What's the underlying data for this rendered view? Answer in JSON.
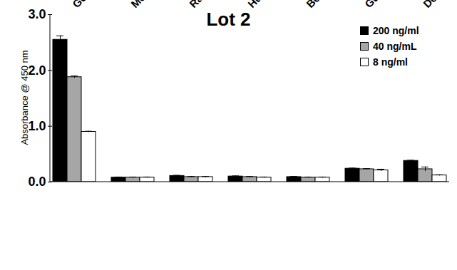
{
  "chart_data": {
    "type": "bar",
    "title": "Lot 2",
    "y_label": "Absorbance @ 450 nm",
    "categories": [
      "Goat",
      "Mouse",
      "Rat",
      "Human",
      "Bovine",
      "Guinea Pig",
      "Donkey"
    ],
    "series": [
      {
        "name": "200 ng/ml",
        "color": "#000000",
        "values": [
          2.55,
          0.08,
          0.11,
          0.1,
          0.09,
          0.24,
          0.38
        ],
        "errors": [
          0.07,
          0.01,
          0.01,
          0.01,
          0.01,
          0.01,
          0.01
        ]
      },
      {
        "name": "40 ng/mL",
        "color": "#a6a6a6",
        "values": [
          1.88,
          0.08,
          0.09,
          0.09,
          0.08,
          0.23,
          0.23
        ],
        "errors": [
          0.02,
          0.01,
          0.01,
          0.01,
          0.01,
          0.01,
          0.04
        ]
      },
      {
        "name": "8 ng/ml",
        "color": "#ffffff",
        "values": [
          0.9,
          0.08,
          0.09,
          0.08,
          0.08,
          0.21,
          0.12
        ],
        "errors": [
          0.01,
          0.01,
          0.01,
          0.01,
          0.01,
          0.02,
          0.01
        ]
      }
    ],
    "ylim": [
      0,
      3
    ],
    "yticks": [
      0,
      1,
      2,
      3
    ],
    "grid": false,
    "legend": "top-right"
  }
}
